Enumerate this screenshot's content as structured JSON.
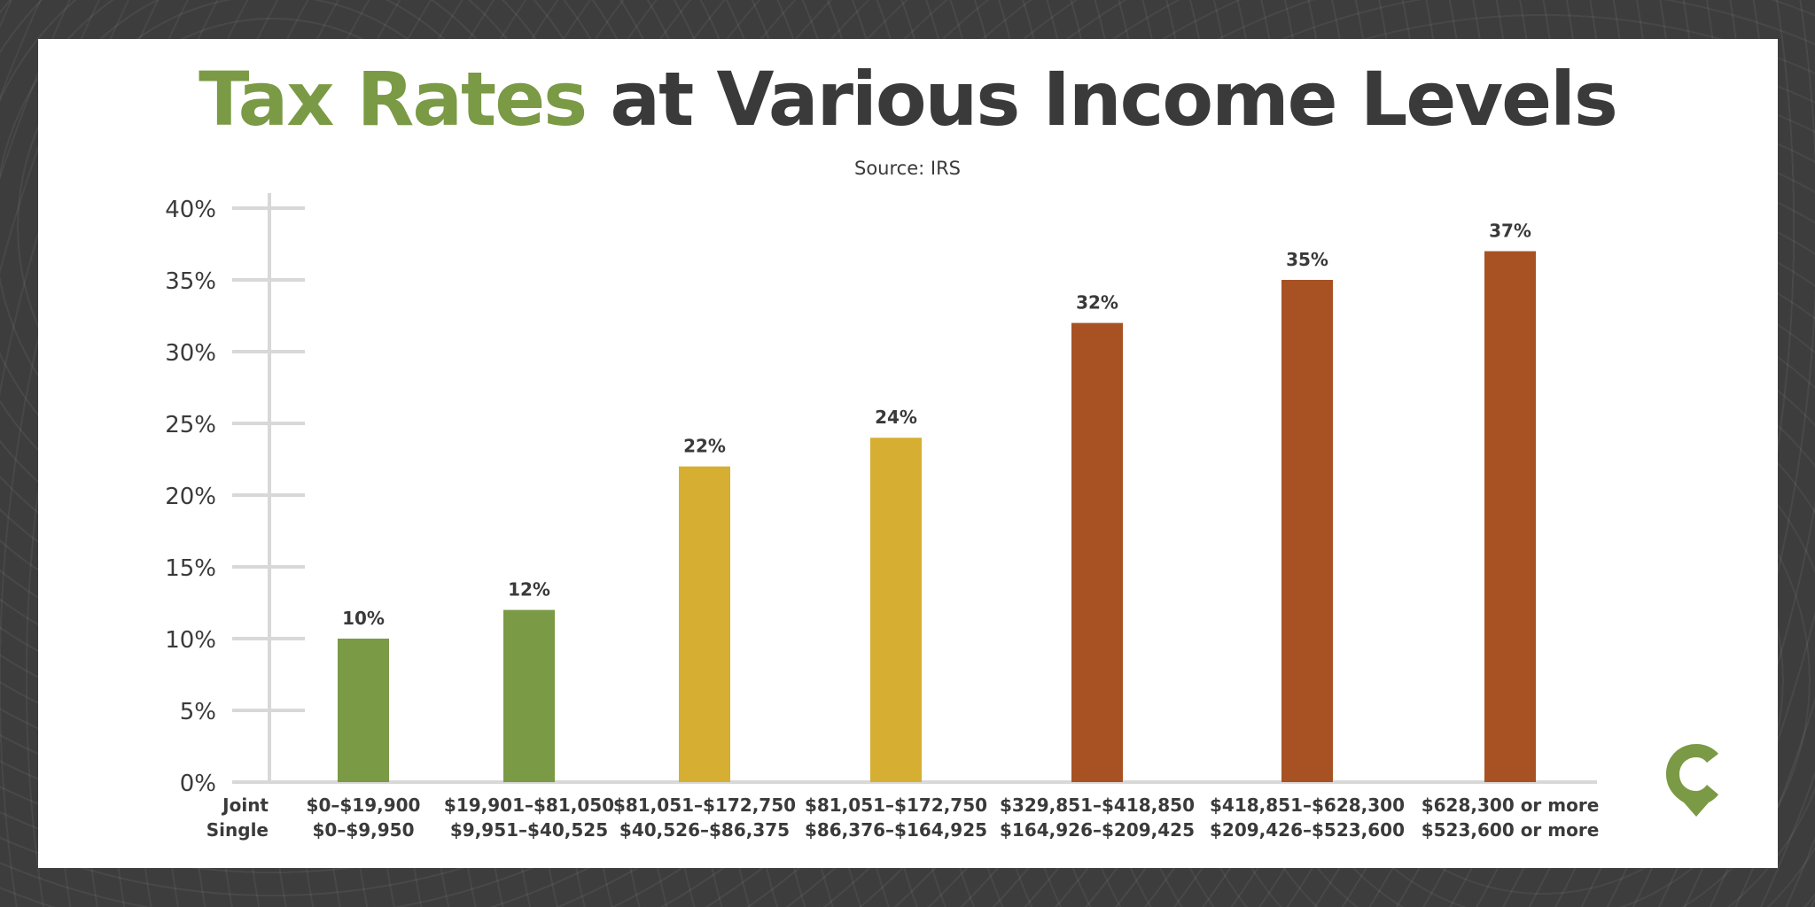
{
  "title": {
    "accent": "Tax Rates",
    "rest": " at Various Income Levels"
  },
  "subtitle": "Source: IRS",
  "colors": {
    "green": "#7a9a45",
    "yellow": "#d6af32",
    "rust": "#a85224",
    "text": "#3a3a3a",
    "grid": "#d8d8d8"
  },
  "row_labels": [
    "Joint",
    "Single"
  ],
  "logo_icon": "location-pin-c-logo-icon",
  "chart_data": {
    "type": "bar",
    "title": "Tax Rates at Various Income Levels",
    "subtitle": "Source: IRS",
    "xlabel": "",
    "ylabel": "",
    "ylim": [
      0,
      40
    ],
    "yticks": [
      0,
      5,
      10,
      15,
      20,
      25,
      30,
      35,
      40
    ],
    "ytick_labels": [
      "0%",
      "5%",
      "10%",
      "15%",
      "20%",
      "25%",
      "30%",
      "35%",
      "40%"
    ],
    "grid": false,
    "categories": [
      {
        "joint": "$0–$19,900",
        "single": "$0–$9,950"
      },
      {
        "joint": "$19,901–$81,050",
        "single": "$9,951–$40,525"
      },
      {
        "joint": "$81,051–$172,750",
        "single": "$40,526–$86,375"
      },
      {
        "joint": "$81,051–$172,750",
        "single": "$86,376–$164,925"
      },
      {
        "joint": "$329,851–$418,850",
        "single": "$164,926–$209,425"
      },
      {
        "joint": "$418,851–$628,300",
        "single": "$209,426–$523,600"
      },
      {
        "joint": "$628,300 or more",
        "single": "$523,600 or more"
      }
    ],
    "values": [
      10,
      12,
      22,
      24,
      32,
      35,
      37
    ],
    "value_labels": [
      "10%",
      "12%",
      "22%",
      "24%",
      "32%",
      "35%",
      "37%"
    ],
    "bar_colors": [
      "#7a9a45",
      "#7a9a45",
      "#d6af32",
      "#d6af32",
      "#a85224",
      "#a85224",
      "#a85224"
    ]
  }
}
